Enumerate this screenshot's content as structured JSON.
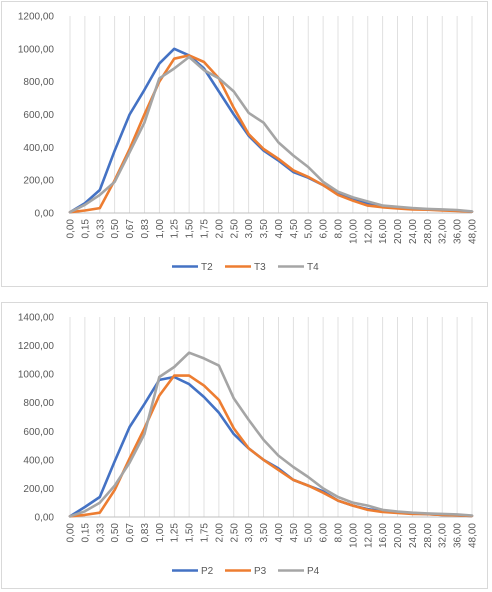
{
  "chart_data": [
    {
      "type": "line",
      "title": "",
      "xlabel": "",
      "ylabel": "",
      "categories": [
        "0,00",
        "0,15",
        "0,33",
        "0,50",
        "0,67",
        "0,83",
        "1,00",
        "1,25",
        "1,50",
        "1,75",
        "2,00",
        "2,50",
        "3,00",
        "3,50",
        "4,00",
        "4,50",
        "5,00",
        "6,00",
        "8,00",
        "10,00",
        "12,00",
        "16,00",
        "20,00",
        "24,00",
        "28,00",
        "32,00",
        "36,00",
        "48,00"
      ],
      "y_ticks": [
        "0,00",
        "200,00",
        "400,00",
        "600,00",
        "800,00",
        "1000,00",
        "1200,00"
      ],
      "ylim": [
        0,
        1200
      ],
      "vertical_gridlines": true,
      "legend_position": "bottom",
      "series": [
        {
          "name": "T2",
          "color": "#4472c4",
          "values": [
            5,
            60,
            140,
            380,
            600,
            750,
            910,
            1000,
            960,
            880,
            740,
            600,
            470,
            380,
            320,
            250,
            215,
            170,
            115,
            85,
            55,
            40,
            30,
            25,
            22,
            18,
            15,
            8
          ]
        },
        {
          "name": "T3",
          "color": "#ed7d31",
          "values": [
            5,
            15,
            30,
            200,
            390,
            600,
            800,
            940,
            960,
            920,
            820,
            640,
            480,
            390,
            330,
            260,
            220,
            170,
            110,
            75,
            45,
            35,
            28,
            22,
            20,
            15,
            12,
            8
          ]
        },
        {
          "name": "T4",
          "color": "#a5a5a5",
          "values": [
            5,
            50,
            110,
            190,
            370,
            550,
            820,
            880,
            950,
            870,
            820,
            740,
            610,
            550,
            430,
            350,
            280,
            190,
            130,
            95,
            70,
            45,
            38,
            30,
            25,
            22,
            18,
            10
          ]
        }
      ]
    },
    {
      "type": "line",
      "title": "",
      "xlabel": "",
      "ylabel": "",
      "categories": [
        "0,00",
        "0,15",
        "0,33",
        "0,50",
        "0,67",
        "0,83",
        "1,00",
        "1,25",
        "1,50",
        "1,75",
        "2,00",
        "2,50",
        "3,00",
        "3,50",
        "4,00",
        "4,50",
        "5,00",
        "6,00",
        "8,00",
        "10,00",
        "12,00",
        "16,00",
        "20,00",
        "24,00",
        "28,00",
        "32,00",
        "36,00",
        "48,00"
      ],
      "y_ticks": [
        "0,00",
        "200,00",
        "400,00",
        "600,00",
        "800,00",
        "1000,00",
        "1200,00",
        "1400,00"
      ],
      "ylim": [
        0,
        1400
      ],
      "vertical_gridlines": true,
      "legend_position": "bottom",
      "series": [
        {
          "name": "P2",
          "color": "#4472c4",
          "values": [
            5,
            70,
            140,
            390,
            630,
            790,
            960,
            980,
            930,
            840,
            730,
            580,
            480,
            400,
            340,
            260,
            220,
            180,
            115,
            80,
            55,
            40,
            30,
            25,
            20,
            15,
            12,
            8
          ]
        },
        {
          "name": "P3",
          "color": "#ed7d31",
          "values": [
            5,
            15,
            30,
            190,
            410,
            620,
            850,
            990,
            990,
            920,
            820,
            620,
            480,
            400,
            330,
            260,
            220,
            170,
            115,
            80,
            50,
            35,
            28,
            22,
            20,
            15,
            12,
            8
          ]
        },
        {
          "name": "P4",
          "color": "#a5a5a5",
          "values": [
            5,
            40,
            100,
            220,
            380,
            580,
            980,
            1050,
            1150,
            1110,
            1060,
            830,
            680,
            540,
            430,
            350,
            280,
            200,
            140,
            100,
            80,
            50,
            38,
            30,
            25,
            22,
            18,
            10
          ]
        }
      ]
    }
  ]
}
